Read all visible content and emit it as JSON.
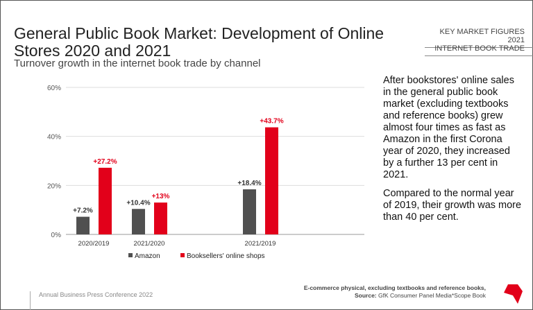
{
  "header": {
    "title": "General Public Book Market: Development of Online Stores 2020 and 2021",
    "subtitle": "Turnover growth in the internet book trade by channel",
    "tag1": "KEY MARKET FIGURES 2021",
    "tag2": "INTERNET BOOK TRADE"
  },
  "side_text": [
    "After bookstores' online sales in the general public book market (excluding textbooks and reference books) grew almost four times as fast as Amazon in the first Corona year of 2020, they increased by a further 13 per cent in 2021.",
    "Compared to the normal year of 2019, their growth was more than 40 per cent."
  ],
  "footer": {
    "left": "Annual Business Press Conference 2022",
    "note": "E-commerce physical, excluding textbooks and reference books,",
    "source_label": "Source:",
    "source": "GfK Consumer Panel Media*Scope Book"
  },
  "chart_data": {
    "type": "bar",
    "categories": [
      "2020/2019",
      "2021/2020",
      "2021/2019"
    ],
    "series": [
      {
        "name": "Amazon",
        "values": [
          7.2,
          10.4,
          18.4
        ],
        "labels": [
          "+7.2%",
          "+10.4%",
          "+18.4%"
        ],
        "color": "#505050"
      },
      {
        "name": "Booksellers' online shops",
        "values": [
          27.2,
          13,
          43.7
        ],
        "labels": [
          "+27.2%",
          "+13%",
          "+43.7%"
        ],
        "color": "#e2001a"
      }
    ],
    "yticks": [
      "0%",
      "20%",
      "40%",
      "60%"
    ],
    "ylim": [
      0,
      60
    ],
    "grid": true,
    "legend": "bottom"
  }
}
